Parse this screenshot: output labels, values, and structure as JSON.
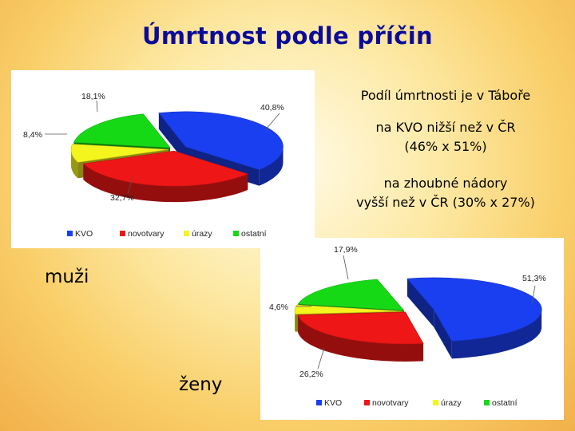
{
  "title": "Úmrtnost podle příčin",
  "text": {
    "line1": "Podíl úmrtnosti je v Táboře",
    "line2a": "na KVO nižší než v ČR",
    "line2b": "(46% x 51%)",
    "line3a": "na zhoubné nádory",
    "line3b": "vyšší než v ČR (30% x 27%)"
  },
  "labels": {
    "men": "muži",
    "women": "ženy"
  },
  "colors": {
    "kvo": "#1a3ff0",
    "novotvary": "#ee1616",
    "urazy": "#f5f51e",
    "ostatni": "#16d916",
    "title": "#0b0b9a"
  },
  "chart_data": [
    {
      "type": "pie",
      "group": "muži",
      "categories": [
        "KVO",
        "novotvary",
        "úrazy",
        "ostatní"
      ],
      "values": [
        40.8,
        32.7,
        8.4,
        18.1
      ],
      "value_labels": [
        "40,8%",
        "32,7%",
        "8,4%",
        "18,1%"
      ],
      "legend": "bottom"
    },
    {
      "type": "pie",
      "group": "ženy",
      "categories": [
        "KVO",
        "novotvary",
        "úrazy",
        "ostatní"
      ],
      "values": [
        51.3,
        26.2,
        4.6,
        17.9
      ],
      "value_labels": [
        "51,3%",
        "26,2%",
        "4,6%",
        "17,9%"
      ],
      "legend": "bottom"
    }
  ]
}
